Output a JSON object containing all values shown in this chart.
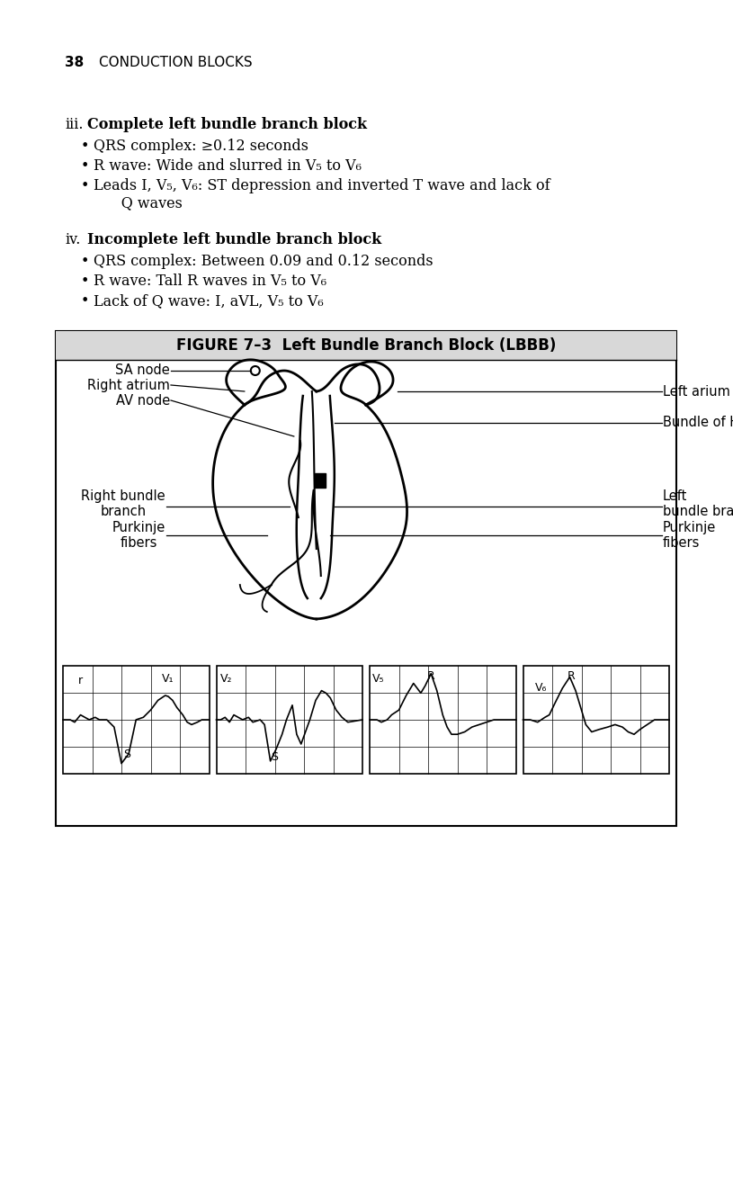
{
  "bg_color": "#ffffff",
  "page_number": "38",
  "page_header": "CONDUCTION BLOCKS",
  "section_iii_prefix": "iii.",
  "section_iii_title": "Complete left bundle branch block",
  "section_iii_bullets": [
    "QRS complex: ≥0.12 seconds",
    "R wave: Wide and slurred in V₅ to V₆",
    "Leads I, V₅, V₆: ST depression and inverted T wave and lack of\n      Q waves"
  ],
  "section_iv_prefix": "iv.",
  "section_iv_title": "Incomplete left bundle branch block",
  "section_iv_bullets": [
    "QRS complex: Between 0.09 and 0.12 seconds",
    "R wave: Tall R waves in V₅ to V₆",
    "Lack of Q wave: I, aVL, V₅ to V₆"
  ],
  "figure_title": "FIGURE 7–3  Left Bundle Branch Block (LBBB)",
  "figure_bg": "#f0f0f0",
  "figure_inner_bg": "#ffffff",
  "labels_left": [
    "SA node",
    "Right atrium",
    "AV node",
    "Right bundle\nbranch",
    "Purkinje\nfibers"
  ],
  "labels_right": [
    "Left arium",
    "Bundle of HIS",
    "Left\nbundle branch",
    "Purkinje\nfibers"
  ],
  "ekg_labels": [
    "V₁",
    "r",
    "S",
    "V₂",
    "S",
    "V₅",
    "R",
    "V₆",
    "R"
  ]
}
